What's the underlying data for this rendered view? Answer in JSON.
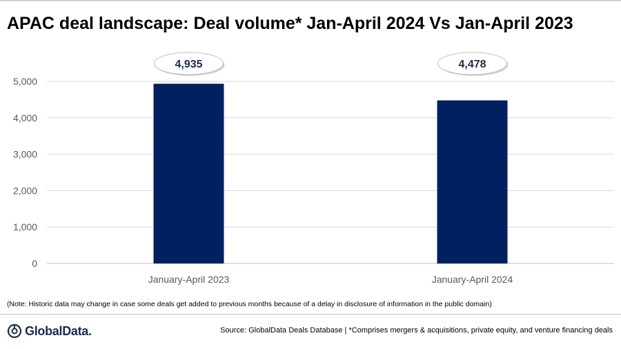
{
  "title": "APAC deal landscape: Deal volume* Jan-April 2024 Vs Jan-April 2023",
  "note": "(Note: Historic data may change in case some deals get added to previous months because of a delay in disclosure of information in the public domain)",
  "source": "Source: GlobalData Deals Database | *Comprises mergers & acquisitions, private equity, and venture financing deals",
  "logo": {
    "text": "GlobalData.",
    "icon": "globaldata-logo-icon"
  },
  "chart_data": {
    "type": "bar",
    "categories": [
      "January-April 2023",
      "January-April 2024"
    ],
    "values": [
      4935,
      4478
    ],
    "data_labels": [
      "4,935",
      "4,478"
    ],
    "ylim": [
      0,
      5000
    ],
    "yticks": [
      0,
      1000,
      2000,
      3000,
      4000,
      5000
    ],
    "ytick_labels": [
      "0",
      "1,000",
      "2,000",
      "3,000",
      "4,000",
      "5,000"
    ],
    "grid": true,
    "bar_color": "#002060",
    "gridline_color": "#d9d9d9",
    "xlabel": "",
    "ylabel": ""
  }
}
